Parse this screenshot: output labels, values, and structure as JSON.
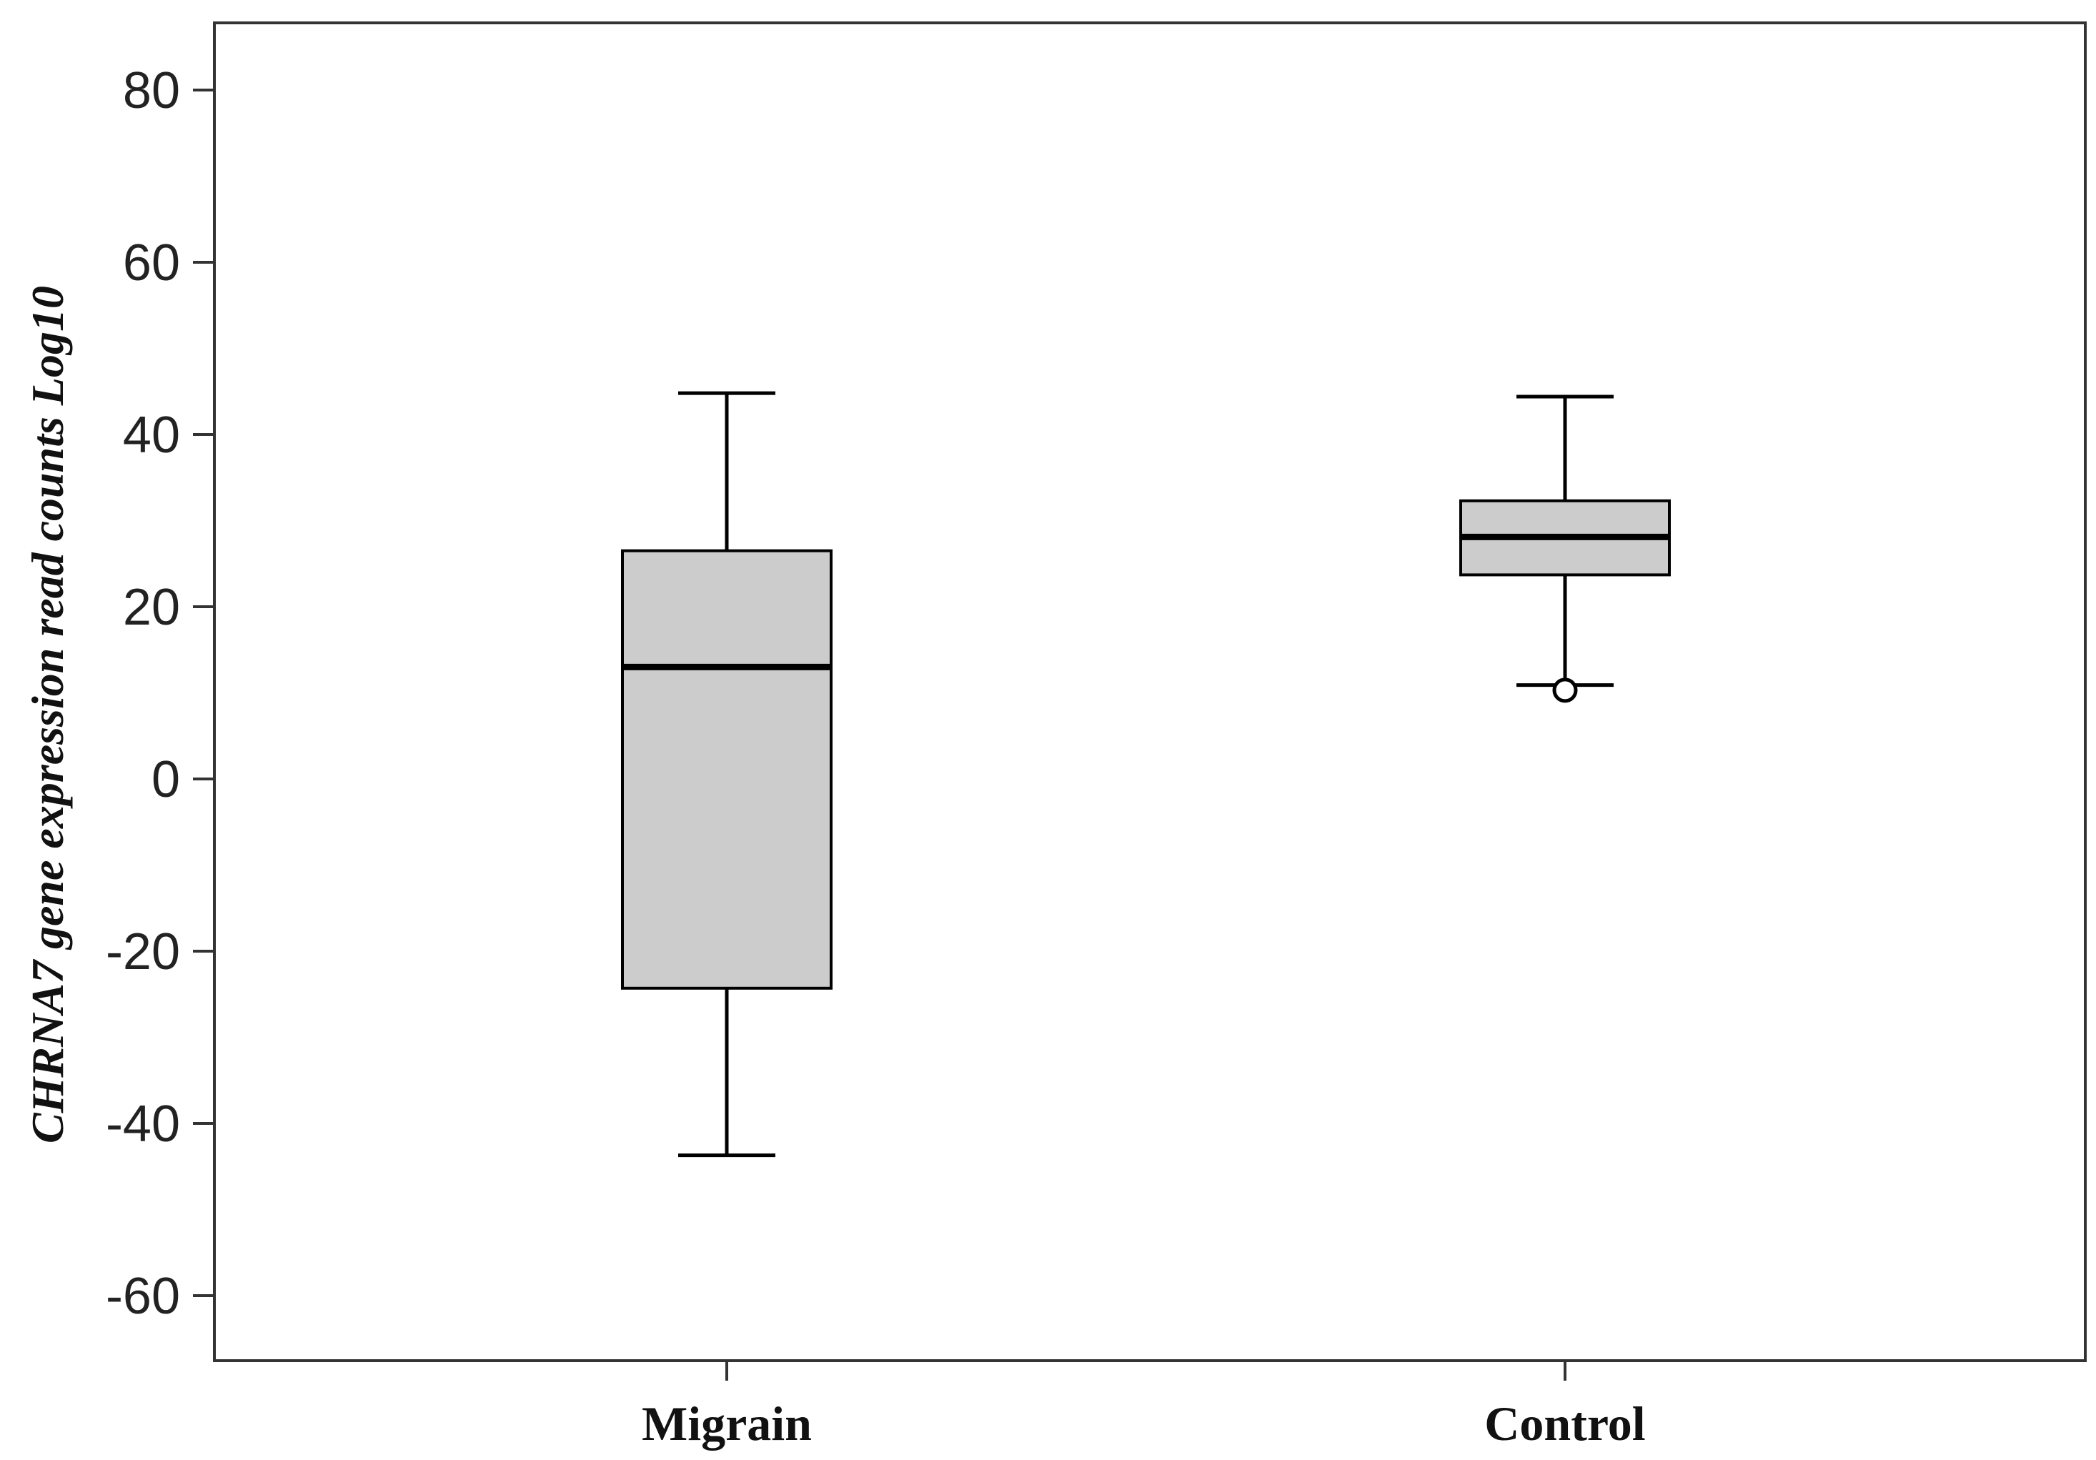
{
  "chart_data": {
    "type": "box",
    "title": "",
    "xlabel": "",
    "ylabel": "CHRNA7 gene expression read counts Log10",
    "ylim": [
      -68,
      88
    ],
    "yticks": [
      80,
      60,
      40,
      20,
      0,
      -20,
      -40,
      -60
    ],
    "ytick_labels": [
      "80",
      "60",
      "40",
      "20",
      "0",
      "-20",
      "-40",
      "-60"
    ],
    "grid": false,
    "categories": [
      "Migrain",
      "Control"
    ],
    "boxes": [
      {
        "category": "Migrain",
        "whisker_low": -43.7,
        "q1": -24.3,
        "median": 13.0,
        "q3": 26.5,
        "whisker_high": 44.8,
        "outliers": []
      },
      {
        "category": "Control",
        "whisker_low": 10.9,
        "q1": 23.7,
        "median": 28.1,
        "q3": 32.3,
        "whisker_high": 44.4,
        "outliers": [
          10.3
        ]
      }
    ],
    "colors": {
      "box_fill": "#cccccc",
      "stroke": "#000000",
      "axis": "#333333"
    }
  }
}
